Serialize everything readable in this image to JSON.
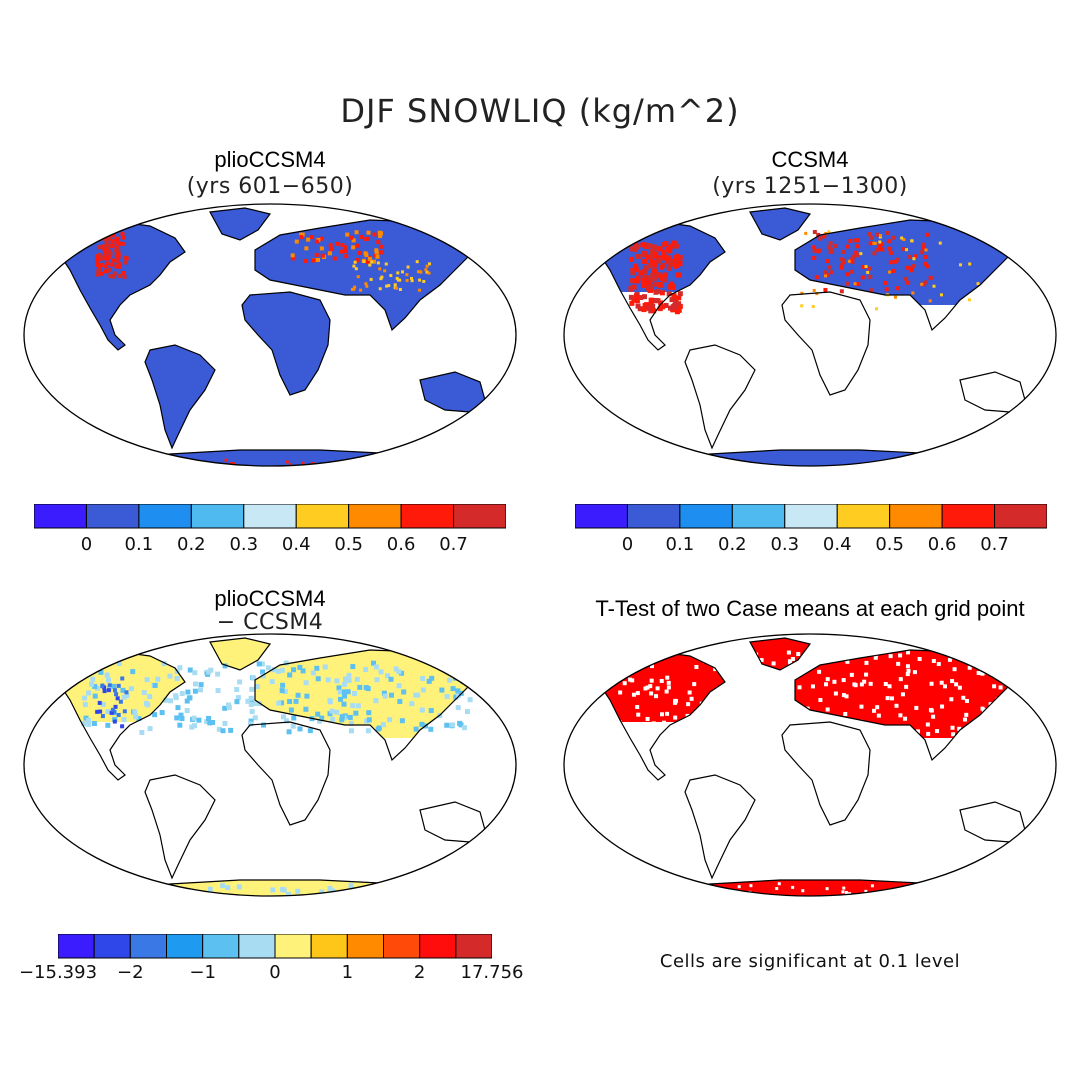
{
  "title": "DJF SNOWLIQ (kg/m^2)",
  "panels": [
    {
      "id": "pliocene",
      "title": "plioCCSM4",
      "subtitle": "(yrs 601−650)",
      "kind": "full"
    },
    {
      "id": "control",
      "title": "CCSM4",
      "subtitle": "(yrs 1251−1300)",
      "kind": "snow"
    },
    {
      "id": "difference",
      "title": "plioCCSM4",
      "subtitle": "− CCSM4",
      "kind": "diff"
    },
    {
      "id": "ttest",
      "title": "T-Test of two Case means at each grid point",
      "subtitle": "",
      "kind": "sig"
    }
  ],
  "colorbars": {
    "absolute": {
      "colors": [
        "#3a1cff",
        "#3b5ad6",
        "#1e8ef0",
        "#4ebaf0",
        "#c8e8f5",
        "#ffcc22",
        "#ff8a00",
        "#ff1a0a",
        "#d42a2a"
      ],
      "labels": [
        "0",
        "0.1",
        "0.2",
        "0.3",
        "0.4",
        "0.5",
        "0.6",
        "0.7"
      ]
    },
    "difference": {
      "colors": [
        "#3a1cff",
        "#2f46e8",
        "#3a78e6",
        "#1e9af0",
        "#5cc0f0",
        "#a8dcf2",
        "#fff27a",
        "#ffc61a",
        "#ff8a00",
        "#ff4a0a",
        "#ff0d0d",
        "#d42a2a"
      ],
      "labels": [
        "−15.393",
        "−2",
        "−1",
        "0",
        "1",
        "2",
        "17.756"
      ]
    }
  },
  "significance_note": "Cells are significant at 0.1 level",
  "significance_color": "#ff0000"
}
